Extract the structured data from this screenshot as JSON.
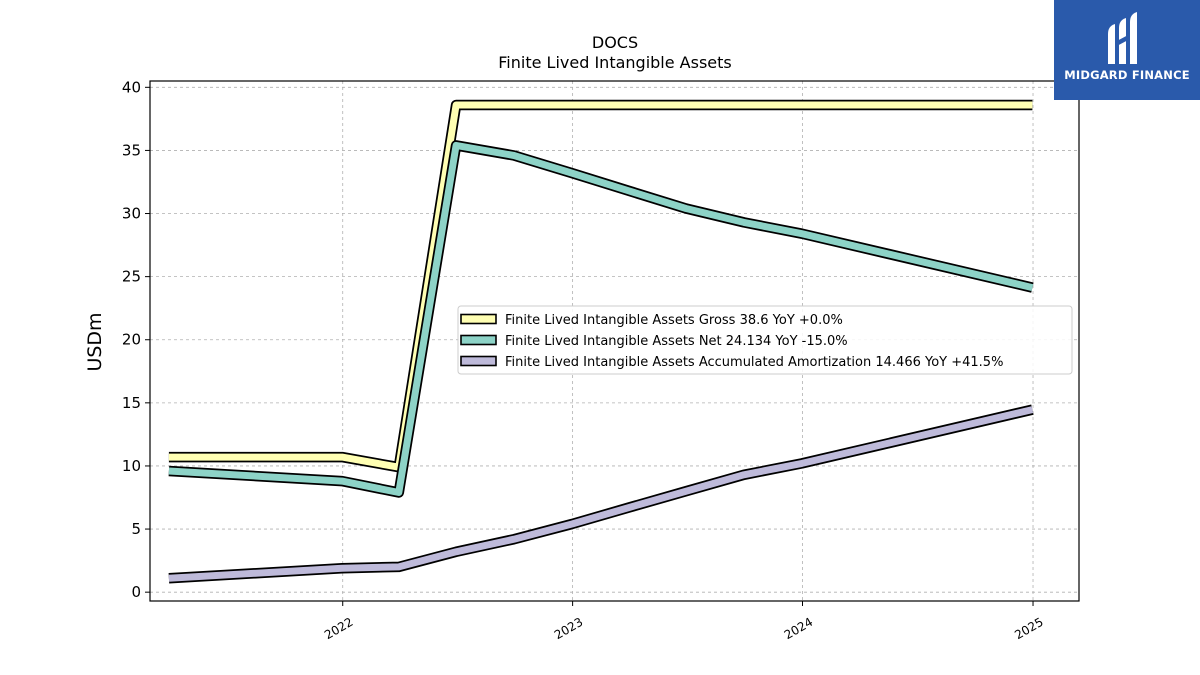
{
  "brand": {
    "name": "MIDGARD FINANCE",
    "background": "#2a5aab"
  },
  "chart_data": {
    "type": "line",
    "title": "DOCS",
    "subtitle": "Finite Lived Intangible Assets",
    "xlabel": "",
    "ylabel": "USDm",
    "x_axis_type": "date",
    "xlim": [
      "2021-03-01",
      "2025-03-15"
    ],
    "ylim": [
      -0.7,
      40.5
    ],
    "xticks": [
      "2022",
      "2023",
      "2024",
      "2025"
    ],
    "yticks": [
      0,
      5,
      10,
      15,
      20,
      25,
      30,
      35,
      40
    ],
    "grid": true,
    "legend_position": "center-right",
    "series": [
      {
        "name": "Finite Lived Intangible Assets Gross",
        "legend_label": "Finite Lived Intangible Assets Gross  38.6 YoY +0.0%",
        "color": "#ffffb3",
        "points": [
          [
            "2021-03-31",
            10.7
          ],
          [
            "2021-12-31",
            10.7
          ],
          [
            "2022-03-31",
            9.9
          ],
          [
            "2022-06-30",
            38.6
          ],
          [
            "2022-09-30",
            38.6
          ],
          [
            "2022-12-31",
            38.6
          ],
          [
            "2023-03-31",
            38.6
          ],
          [
            "2023-06-30",
            38.6
          ],
          [
            "2023-09-30",
            38.6
          ],
          [
            "2023-12-31",
            38.6
          ],
          [
            "2024-12-31",
            38.6
          ]
        ]
      },
      {
        "name": "Finite Lived Intangible Assets Net",
        "legend_label": "Finite Lived Intangible Assets Net  24.134 YoY -15.0%",
        "color": "#8dd3c7",
        "points": [
          [
            "2021-03-31",
            9.6
          ],
          [
            "2021-12-31",
            8.8
          ],
          [
            "2022-03-31",
            7.9
          ],
          [
            "2022-06-30",
            35.4
          ],
          [
            "2022-09-30",
            34.6
          ],
          [
            "2022-12-31",
            33.2
          ],
          [
            "2023-03-31",
            31.8
          ],
          [
            "2023-06-30",
            30.4
          ],
          [
            "2023-09-30",
            29.3
          ],
          [
            "2023-12-31",
            28.4
          ],
          [
            "2024-12-31",
            24.134
          ]
        ]
      },
      {
        "name": "Finite Lived Intangible Assets Accumulated Amortization",
        "legend_label": "Finite Lived Intangible Assets Accumulated Amortization  14.466 YoY +41.5%",
        "color": "#bebada",
        "points": [
          [
            "2021-03-31",
            1.1
          ],
          [
            "2021-12-31",
            1.9
          ],
          [
            "2022-03-31",
            2.0
          ],
          [
            "2022-06-30",
            3.2
          ],
          [
            "2022-09-30",
            4.2
          ],
          [
            "2022-12-31",
            5.4
          ],
          [
            "2023-03-31",
            6.7
          ],
          [
            "2023-06-30",
            8.0
          ],
          [
            "2023-09-30",
            9.3
          ],
          [
            "2023-12-31",
            10.2
          ],
          [
            "2024-12-31",
            14.466
          ]
        ]
      }
    ]
  }
}
